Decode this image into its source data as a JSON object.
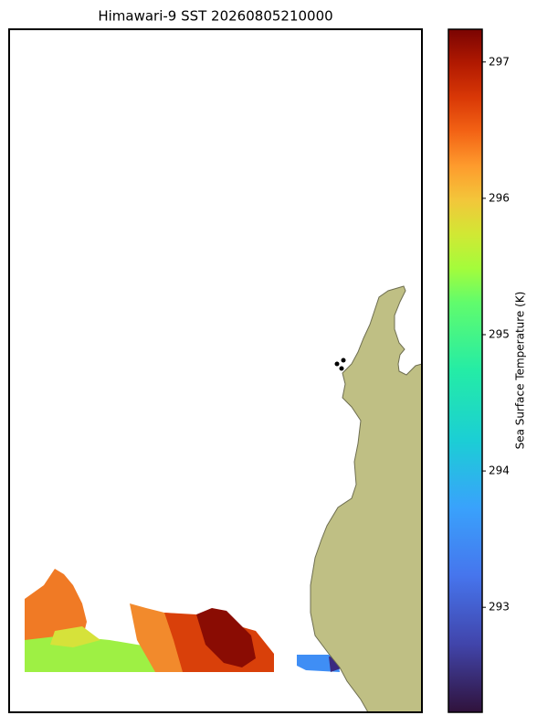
{
  "title": "Himawari-9 SST 20260805210000",
  "colorbar": {
    "label": "Sea Surface Temperature (K)",
    "lim": [
      292.23,
      297.24
    ],
    "ticks": [
      293,
      294,
      295,
      296,
      297
    ]
  }
}
